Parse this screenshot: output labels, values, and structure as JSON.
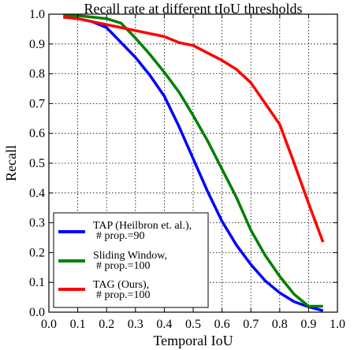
{
  "chart_data": {
    "type": "line",
    "title": "Recall rate at different tIoU thresholds",
    "xlabel": "Temporal IoU",
    "ylabel": "Recall",
    "xlim": [
      0.0,
      1.0
    ],
    "ylim": [
      0.0,
      1.0
    ],
    "grid": true,
    "legend_position": "bottom-left",
    "x_ticks": [
      "0.0",
      "0.1",
      "0.2",
      "0.3",
      "0.4",
      "0.5",
      "0.6",
      "0.7",
      "0.8",
      "0.9",
      "1.0"
    ],
    "y_ticks": [
      "0.0",
      "0.1",
      "0.2",
      "0.3",
      "0.4",
      "0.5",
      "0.6",
      "0.7",
      "0.8",
      "0.9",
      "1.0"
    ],
    "x": [
      0.05,
      0.1,
      0.15,
      0.2,
      0.25,
      0.3,
      0.35,
      0.4,
      0.45,
      0.5,
      0.55,
      0.6,
      0.65,
      0.7,
      0.75,
      0.8,
      0.85,
      0.9,
      0.95
    ],
    "series": [
      {
        "name": "TAP (Heilbron et. al.),\n# prop.=90",
        "label_line1": "TAP (Heilbron et. al.),",
        "label_line2": "# prop.=90",
        "color": "#0000ff",
        "values": [
          0.99,
          0.985,
          0.975,
          0.955,
          0.905,
          0.855,
          0.795,
          0.725,
          0.625,
          0.515,
          0.405,
          0.305,
          0.225,
          0.16,
          0.105,
          0.065,
          0.035,
          0.018,
          0.005
        ]
      },
      {
        "name": "Sliding Window,\n# prop.=100",
        "label_line1": "Sliding Window,",
        "label_line2": "# prop.=100",
        "color": "#008000",
        "values": [
          0.997,
          0.995,
          0.99,
          0.985,
          0.97,
          0.92,
          0.865,
          0.805,
          0.74,
          0.66,
          0.575,
          0.48,
          0.385,
          0.275,
          0.19,
          0.12,
          0.06,
          0.02,
          0.02
        ]
      },
      {
        "name": "TAG (Ours),\n# prop.=100",
        "label_line1": "TAG (Ours),",
        "label_line2": "# prop.=100",
        "color": "#ff0000",
        "values": [
          0.99,
          0.985,
          0.975,
          0.965,
          0.955,
          0.945,
          0.935,
          0.925,
          0.905,
          0.895,
          0.87,
          0.845,
          0.815,
          0.77,
          0.7,
          0.63,
          0.5,
          0.365,
          0.235
        ]
      }
    ]
  }
}
